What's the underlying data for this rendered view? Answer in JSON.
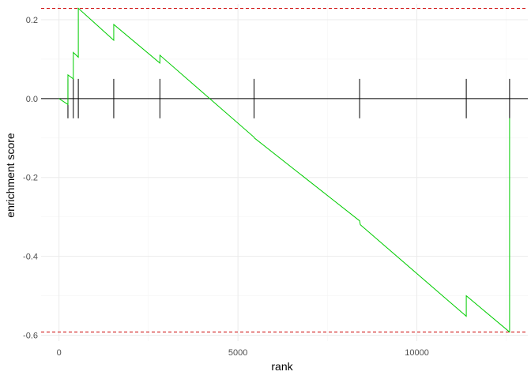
{
  "chart_data": {
    "type": "line",
    "title": "",
    "xlabel": "rank",
    "ylabel": "enrichment score",
    "xlim": [
      -500,
      13100
    ],
    "ylim": [
      -0.615,
      0.24
    ],
    "x_ticks": [
      0,
      5000,
      10000
    ],
    "x_tick_labels": [
      "0",
      "5000",
      "10000"
    ],
    "y_ticks": [
      0.2,
      0.0,
      -0.2,
      -0.4,
      -0.6
    ],
    "y_tick_labels": [
      "0.2",
      "0.0",
      "-0.2",
      "-0.4",
      "-0.6"
    ],
    "grid": true,
    "legend": "none",
    "colors": {
      "running_score": "#00cc00",
      "reference_lines": "#cc0000",
      "zero_line": "#000000",
      "hit_marks": "#000000",
      "grid": "#ebebeb"
    },
    "hit_ranks": [
      250,
      400,
      540,
      1530,
      2820,
      5450,
      8400,
      11380,
      12590
    ],
    "reference_lines": {
      "max": 0.229,
      "min": -0.592
    },
    "series": [
      {
        "values": [
          [
            0,
            0.0
          ],
          [
            250,
            -0.015
          ],
          [
            250,
            0.06
          ],
          [
            400,
            0.05
          ],
          [
            400,
            0.117
          ],
          [
            540,
            0.105
          ],
          [
            540,
            0.229
          ],
          [
            1530,
            0.148
          ],
          [
            1530,
            0.188
          ],
          [
            2820,
            0.09
          ],
          [
            2820,
            0.11
          ],
          [
            5450,
            -0.098
          ],
          [
            5460,
            -0.1
          ],
          [
            8400,
            -0.31
          ],
          [
            8420,
            -0.32
          ],
          [
            11380,
            -0.552
          ],
          [
            11380,
            -0.5
          ],
          [
            12590,
            -0.592
          ],
          [
            12590,
            -0.31
          ],
          [
            12590,
            -0.05
          ]
        ]
      }
    ]
  }
}
